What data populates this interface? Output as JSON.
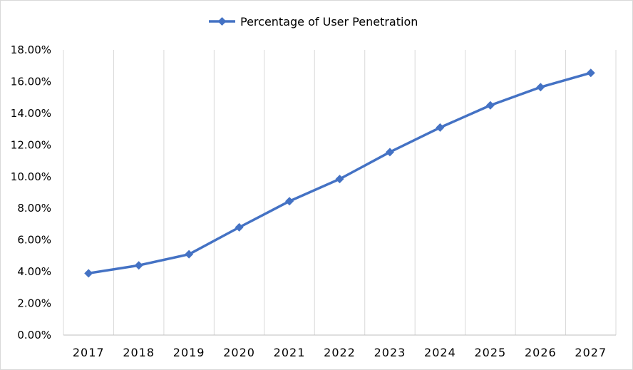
{
  "chart_data": {
    "type": "line",
    "title": "",
    "xlabel": "",
    "ylabel": "",
    "categories": [
      "2017",
      "2018",
      "2019",
      "2020",
      "2021",
      "2022",
      "2023",
      "2024",
      "2025",
      "2026",
      "2027"
    ],
    "series": [
      {
        "name": "Percentage of User Penetration",
        "values": [
          3.9,
          4.4,
          5.1,
          6.8,
          8.45,
          9.85,
          11.55,
          13.1,
          14.5,
          15.65,
          16.55
        ],
        "color": "#4472c4",
        "marker": "diamond"
      }
    ],
    "ylim": [
      0,
      18
    ],
    "y_ticks": [
      "0.00%",
      "2.00%",
      "4.00%",
      "6.00%",
      "8.00%",
      "10.00%",
      "12.00%",
      "14.00%",
      "16.00%",
      "18.00%"
    ],
    "grid": "vertical",
    "legend_position": "top-center"
  }
}
